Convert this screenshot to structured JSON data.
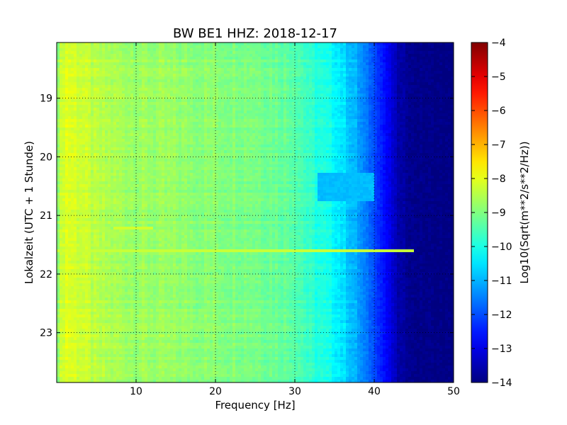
{
  "chart_data": {
    "type": "heatmap",
    "title": "BW BE1 HHZ: 2018-12-17",
    "xlabel": "Frequency [Hz]",
    "ylabel": "Lokalzeit (UTC + 1 Stunde)",
    "xlim": [
      0,
      50
    ],
    "ylim": [
      18.05,
      23.85
    ],
    "y_inverted": true,
    "grid": true,
    "x_ticks": [
      10,
      20,
      30,
      40,
      50
    ],
    "y_ticks": [
      19,
      20,
      21,
      22,
      23
    ],
    "colormap": "jet",
    "colorbar": {
      "label": "Log10(Sqrt(m**2/s**2/Hz))",
      "range": [
        -14,
        -4
      ],
      "ticks": [
        -4,
        -5,
        -6,
        -7,
        -8,
        -9,
        -10,
        -11,
        -12,
        -13,
        -14
      ]
    },
    "spectrum_profile": {
      "frequency_hz": [
        0,
        1,
        3,
        5,
        10,
        15,
        20,
        25,
        30,
        32,
        35,
        37,
        38,
        40,
        42,
        43,
        45,
        50
      ],
      "log10_amplitude": [
        -8.8,
        -8.0,
        -8.2,
        -8.5,
        -8.7,
        -8.8,
        -8.9,
        -9.0,
        -9.3,
        -9.8,
        -10.2,
        -10.8,
        -11.2,
        -12.0,
        -13.0,
        -13.6,
        -13.9,
        -14.0
      ]
    },
    "features": [
      {
        "description": "narrow high-amplitude band",
        "time": 21.6,
        "freq_range": [
          0,
          45
        ],
        "log10_amplitude": -8.3
      },
      {
        "description": "short high-amplitude patch",
        "time": 21.22,
        "freq_range": [
          7,
          12
        ],
        "log10_amplitude": -8.2
      },
      {
        "description": "elevated block",
        "time_range": [
          20.28,
          20.78
        ],
        "freq_range": [
          33,
          40
        ],
        "log10_amplitude": -10.9
      }
    ]
  }
}
